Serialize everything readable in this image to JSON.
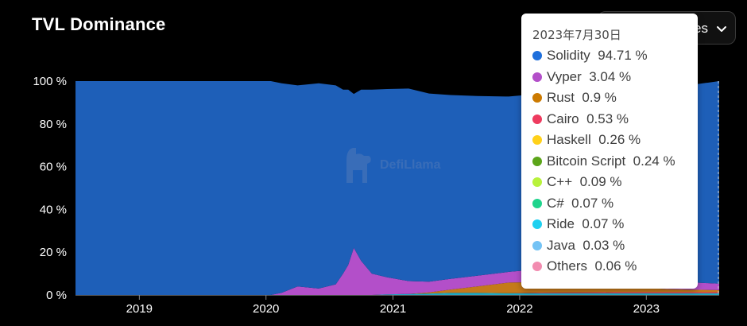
{
  "header": {
    "title": "TVL Dominance",
    "select_label": "es"
  },
  "watermark": {
    "text": "DefiLlama"
  },
  "tooltip": {
    "date": "2023年7月30日",
    "rows": [
      {
        "name": "Solidity",
        "value": "94.71 %",
        "color": "#1e6fdc"
      },
      {
        "name": "Vyper",
        "value": "3.04 %",
        "color": "#b34fc9"
      },
      {
        "name": "Rust",
        "value": "0.9 %",
        "color": "#cc7a00"
      },
      {
        "name": "Cairo",
        "value": "0.53 %",
        "color": "#ee3b5f"
      },
      {
        "name": "Haskell",
        "value": "0.26 %",
        "color": "#ffd11a"
      },
      {
        "name": "Bitcoin Script",
        "value": "0.24 %",
        "color": "#5ca51a"
      },
      {
        "name": "C++",
        "value": "0.09 %",
        "color": "#b8f23c"
      },
      {
        "name": "C#",
        "value": "0.07 %",
        "color": "#1fd48d"
      },
      {
        "name": "Ride",
        "value": "0.07 %",
        "color": "#1fd0f0"
      },
      {
        "name": "Java",
        "value": "0.03 %",
        "color": "#74c3f5"
      },
      {
        "name": "Others",
        "value": "0.06 %",
        "color": "#f28cb0"
      }
    ]
  },
  "chart_data": {
    "type": "area",
    "stacked": true,
    "title": "TVL Dominance",
    "x_ticks": [
      "2019",
      "2020",
      "2021",
      "2022",
      "2023"
    ],
    "y_ticks": [
      "0 %",
      "20 %",
      "40 %",
      "60 %",
      "80 %",
      "100 %"
    ],
    "ylim": [
      0,
      100
    ],
    "xlim": [
      "2018-07-01",
      "2023-07-30"
    ],
    "grid": false,
    "x": [
      "2018-07-01",
      "2019-07-01",
      "2020-01-15",
      "2020-02-15",
      "2020-04-01",
      "2020-06-01",
      "2020-07-20",
      "2020-08-10",
      "2020-08-25",
      "2020-09-10",
      "2020-10-01",
      "2020-11-01",
      "2020-12-15",
      "2021-02-15",
      "2021-04-15",
      "2021-06-15",
      "2021-09-01",
      "2021-12-01",
      "2022-03-01",
      "2022-06-01",
      "2022-10-01",
      "2023-01-01",
      "2023-03-01",
      "2023-05-01",
      "2023-07-30"
    ],
    "series": [
      {
        "name": "Solidity",
        "color": "#1e5fb8",
        "values": [
          100,
          100,
          100,
          98,
          94,
          96,
          93,
          86,
          82,
          72,
          80,
          86,
          88,
          90,
          88,
          86,
          84,
          82,
          82,
          84,
          86,
          88,
          90,
          92,
          94.71
        ]
      },
      {
        "name": "Vyper",
        "color": "#b34fc9",
        "values": [
          0,
          0,
          0,
          1,
          4,
          3,
          5,
          10,
          14,
          22,
          16,
          10,
          8,
          6,
          5,
          5,
          5,
          5,
          6,
          5,
          4,
          4,
          4,
          3.5,
          3.04
        ]
      },
      {
        "name": "Rust",
        "color": "#c47a1a",
        "values": [
          0,
          0,
          0,
          0,
          0,
          0,
          0,
          0,
          0,
          0,
          0,
          0,
          0,
          0,
          0.5,
          1.5,
          3,
          5,
          5,
          4,
          3,
          2,
          1.5,
          1.2,
          0.9
        ]
      },
      {
        "name": "Cairo",
        "color": "#ee3b5f",
        "values": [
          0,
          0,
          0,
          0,
          0,
          0,
          0,
          0,
          0,
          0,
          0,
          0,
          0,
          0,
          0,
          0,
          0,
          0,
          0.3,
          0.4,
          0.5,
          0.5,
          0.5,
          0.5,
          0.53
        ]
      },
      {
        "name": "Others",
        "color": "#1fa9c4",
        "values": [
          0,
          0,
          0,
          0,
          0,
          0,
          0,
          0,
          0,
          0,
          0,
          0,
          0.3,
          0.5,
          0.7,
          1,
          1,
          0.8,
          0.8,
          0.8,
          0.8,
          0.8,
          0.8,
          0.8,
          0.82
        ]
      }
    ]
  }
}
